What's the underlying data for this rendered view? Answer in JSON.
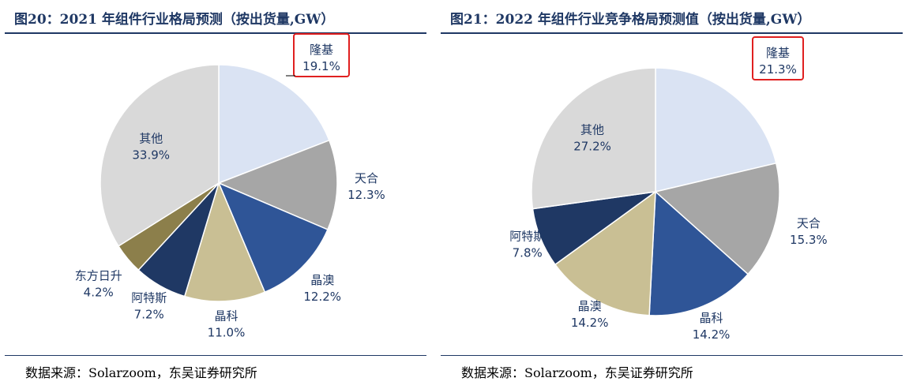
{
  "chart_data": [
    {
      "type": "pie",
      "title": "图20：2021 年组件行业格局预测（按出货量,GW）",
      "source": "数据来源：Solarzoom，东吴证券研究所",
      "categories": [
        "隆基",
        "天合",
        "晶澳",
        "晶科",
        "阿特斯",
        "东方日升",
        "其他"
      ],
      "values": [
        19.1,
        12.3,
        12.2,
        11.0,
        7.2,
        4.2,
        33.9
      ],
      "value_labels": [
        "19.1%",
        "12.3%",
        "12.2%",
        "11.0%",
        "7.2%",
        "4.2%",
        "33.9%"
      ],
      "colors": [
        "#dae3f3",
        "#a6a6a6",
        "#2f5597",
        "#c9bf94",
        "#1f3864",
        "#8c7f4b",
        "#d9d9d9"
      ],
      "highlighted": "隆基",
      "highlight_color": "#e02020"
    },
    {
      "type": "pie",
      "title": "图21：2022 年组件行业竞争格局预测值（按出货量,GW）",
      "source": "数据来源：Solarzoom，东吴证券研究所",
      "categories": [
        "隆基",
        "天合",
        "晶科",
        "晶澳",
        "阿特斯",
        "其他"
      ],
      "values": [
        21.3,
        15.3,
        14.2,
        14.2,
        7.8,
        27.2
      ],
      "value_labels": [
        "21.3%",
        "15.3%",
        "14.2%",
        "14.2%",
        "7.8%",
        "27.2%"
      ],
      "colors": [
        "#dae3f3",
        "#a6a6a6",
        "#2f5597",
        "#c9bf94",
        "#1f3864",
        "#d9d9d9"
      ],
      "highlighted": "隆基",
      "highlight_color": "#e02020"
    }
  ]
}
